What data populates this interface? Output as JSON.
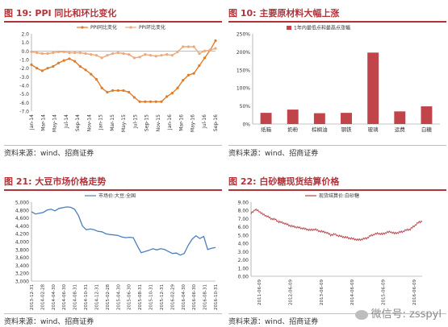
{
  "charts": [
    {
      "figure_label": "图 19:",
      "title": "PPI 同比和环比变化",
      "source": "资料来源：wind、招商证券"
    },
    {
      "figure_label": "图 10:",
      "title": "主要原材料大幅上涨",
      "source": "资料来源：wind、招商证券"
    },
    {
      "figure_label": "图 21:",
      "title": "大豆市场价格走势",
      "source": "资料来源：wind、招商证券"
    },
    {
      "figure_label": "图 22:",
      "title": "白砂糖现货结算价格",
      "source": "资料来源：wind、招商证券"
    }
  ],
  "watermark": "微信号: zsspyl",
  "colors": {
    "accent": "#b2333a",
    "orange": "#e07b28",
    "orange_light": "#f0a87a",
    "bar": "#c0444a",
    "blue": "#4a7fbe",
    "red_line": "#b8424a"
  },
  "chart_data": [
    {
      "type": "line",
      "ylim": [
        -7.0,
        2.0
      ],
      "yticks": [
        2.0,
        1.0,
        0.0,
        -1.0,
        -2.0,
        -3.0,
        -4.0,
        -5.0,
        -6.0,
        -7.0
      ],
      "ytick_labels": [
        "2.0",
        "1.0",
        "0.0",
        "-1.0",
        "-2.0",
        "-3.0",
        "-4.0",
        "-5.0",
        "-6.0",
        "-7.0"
      ],
      "x_labels": [
        "Jan-14",
        "Mar-14",
        "May-14",
        "Jul-14",
        "Sep-14",
        "Nov-14",
        "Jan-15",
        "Mar-15",
        "May-15",
        "Jul-15",
        "Sep-15",
        "Nov-15",
        "Jan-16",
        "Mar-16",
        "May-16",
        "Jul-16",
        "Sep-16"
      ],
      "legend_position": "top",
      "series": [
        {
          "name": "PPI同比变化",
          "values": [
            -1.6,
            -2.0,
            -2.3,
            -2.0,
            -1.8,
            -1.4,
            -1.1,
            -0.9,
            -1.2,
            -1.8,
            -2.2,
            -2.7,
            -3.3,
            -4.3,
            -4.8,
            -4.6,
            -4.6,
            -4.6,
            -4.8,
            -5.4,
            -5.9,
            -5.9,
            -5.9,
            -5.9,
            -5.9,
            -5.3,
            -4.9,
            -4.3,
            -3.4,
            -2.8,
            -2.6,
            -1.7,
            -0.8,
            0.1,
            1.2
          ]
        },
        {
          "name": "PPI环比变化",
          "values": [
            -0.1,
            -0.2,
            -0.3,
            -0.3,
            -0.2,
            -0.1,
            -0.1,
            -0.2,
            -0.2,
            -0.2,
            -0.3,
            -0.4,
            -0.5,
            -0.8,
            -0.5,
            -0.3,
            -0.2,
            -0.3,
            -0.4,
            -0.8,
            -0.7,
            -0.4,
            -0.5,
            -0.6,
            -0.5,
            -0.4,
            -0.5,
            -0.1,
            0.5,
            0.5,
            0.5,
            -0.3,
            0.0,
            0.1,
            0.3
          ]
        }
      ]
    },
    {
      "type": "bar",
      "ylim": [
        0,
        250
      ],
      "ytick_labels": [
        "250%",
        "200%",
        "150%",
        "100%",
        "50%",
        "0%"
      ],
      "yticks": [
        250,
        200,
        150,
        100,
        50,
        0
      ],
      "categories": [
        "纸箱",
        "奶粉",
        "棕榈油",
        "钢铁",
        "玻璃",
        "运费",
        "白糖"
      ],
      "legend_position": "top",
      "series": [
        {
          "name": "1年内最低点和最高点涨幅",
          "values": [
            31,
            40,
            30,
            31,
            198,
            35,
            49
          ]
        }
      ]
    },
    {
      "type": "line",
      "ylim": [
        3000,
        5000
      ],
      "yticks": [
        5000,
        4800,
        4600,
        4400,
        4200,
        4000,
        3800,
        3600,
        3400,
        3200,
        3000
      ],
      "ytick_labels": [
        "5,000",
        "4,800",
        "4,600",
        "4,400",
        "4,200",
        "4,000",
        "3,800",
        "3,600",
        "3,400",
        "3,200",
        "3,000"
      ],
      "x_labels": [
        "2013-12-31",
        "2014-02-28",
        "2014-04-30",
        "2014-06-30",
        "2014-08-31",
        "2014-10-31",
        "2014-12-31",
        "2015-02-28",
        "2015-04-30",
        "2015-06-30",
        "2015-08-31",
        "2015-10-31",
        "2015-12-31",
        "2016-02-29",
        "2016-04-30",
        "2016-06-30",
        "2016-08-31",
        "2016-10-31"
      ],
      "legend_position": "top",
      "series": [
        {
          "name": "市场价:大豆:全国",
          "values": [
            4760,
            4700,
            4720,
            4740,
            4800,
            4820,
            4780,
            4840,
            4860,
            4880,
            4870,
            4820,
            4660,
            4400,
            4300,
            4320,
            4300,
            4260,
            4250,
            4200,
            4180,
            4170,
            4160,
            4120,
            4100,
            4110,
            4100,
            3900,
            3720,
            3750,
            3780,
            3820,
            3790,
            3820,
            3800,
            3750,
            3700,
            3710,
            3660,
            3700,
            3900,
            4060,
            4150,
            4080,
            4130,
            3800,
            3830,
            3850
          ]
        }
      ]
    },
    {
      "type": "line",
      "ylim": [
        0,
        9
      ],
      "yticks": [
        9,
        8,
        7,
        6,
        5,
        4,
        3,
        2,
        1,
        0
      ],
      "ytick_labels": [
        "9.00",
        "8.00",
        "7.00",
        "6.00",
        "5.00",
        "4.00",
        "3.00",
        "2.00",
        "1.00",
        "0.00"
      ],
      "x_labels": [
        "2011-06-09",
        "2012-06-09",
        "2013-06-09",
        "2014-06-09",
        "2015-06-09",
        "2016-06-09"
      ],
      "legend_position": "top",
      "series": [
        {
          "name": "现货结算价:白砂糖",
          "values": [
            7.6,
            8.1,
            7.9,
            7.5,
            7.3,
            7.0,
            6.9,
            6.6,
            6.5,
            6.3,
            6.1,
            6.0,
            5.9,
            5.8,
            5.7,
            5.6,
            5.7,
            5.5,
            5.4,
            5.3,
            5.0,
            5.1,
            4.9,
            4.8,
            4.7,
            4.6,
            4.5,
            4.4,
            4.5,
            4.6,
            4.9,
            5.1,
            5.2,
            5.1,
            5.3,
            5.4,
            5.2,
            5.3,
            5.4,
            5.6,
            5.7,
            6.1,
            6.5,
            6.7
          ]
        }
      ]
    }
  ]
}
